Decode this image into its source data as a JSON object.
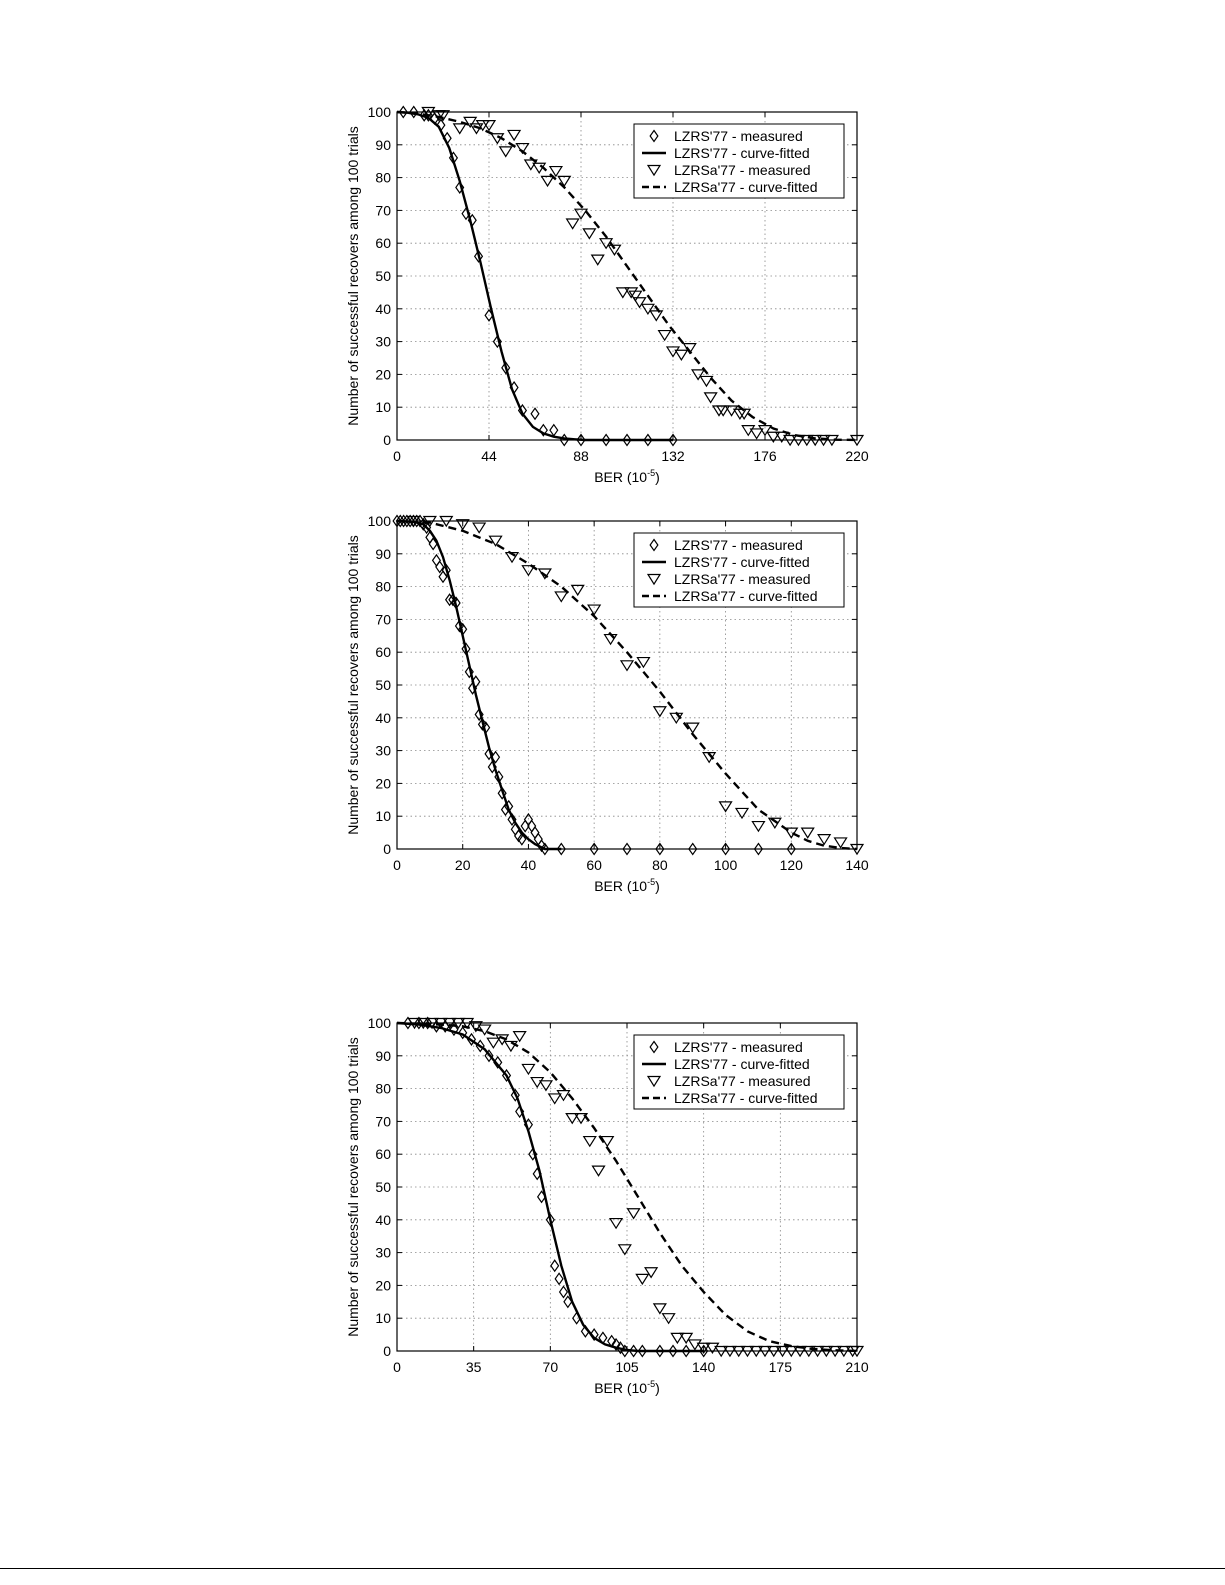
{
  "chart_data": [
    {
      "type": "line",
      "xlabel": "BER (10",
      "xlabel_exp": "-5",
      "xlabel_close": ")",
      "ylabel": "Number of successful recovers among 100 trials",
      "xlim": [
        0,
        220
      ],
      "ylim": [
        0,
        100
      ],
      "xticks": [
        0,
        44,
        88,
        132,
        176,
        220
      ],
      "yticks": [
        0,
        10,
        20,
        30,
        40,
        50,
        60,
        70,
        80,
        90,
        100
      ],
      "grid": true,
      "legend_position": "top-right",
      "series": [
        {
          "name": "LZRS'77 - measured",
          "style": "diamond",
          "x": [
            3,
            8,
            13,
            15,
            18,
            21,
            24,
            27,
            30,
            33,
            36,
            39,
            44,
            48,
            52,
            56,
            60,
            66,
            70,
            75,
            80,
            88,
            100,
            110,
            120,
            132
          ],
          "y": [
            100,
            100,
            99,
            99,
            98,
            96,
            92,
            86,
            77,
            69,
            67,
            56,
            38,
            30,
            22,
            16,
            9,
            8,
            3,
            3,
            0,
            0,
            0,
            0,
            0,
            0
          ]
        },
        {
          "name": "LZRS'77 - curve-fitted",
          "style": "solid",
          "x": [
            0,
            5,
            10,
            15,
            20,
            25,
            30,
            35,
            40,
            45,
            50,
            55,
            60,
            65,
            70,
            75,
            80,
            85,
            90,
            100,
            110,
            120,
            132
          ],
          "y": [
            100,
            99.8,
            99.3,
            98.2,
            95.5,
            89,
            79,
            67,
            54,
            40,
            27,
            15.5,
            8,
            4,
            2,
            1,
            0.5,
            0.2,
            0,
            0,
            0,
            0,
            0
          ]
        },
        {
          "name": "LZRSa'77 - measured",
          "style": "triangle",
          "x": [
            15,
            20,
            22,
            30,
            35,
            38,
            41,
            44,
            48,
            52,
            56,
            60,
            64,
            68,
            72,
            76,
            80,
            84,
            88,
            92,
            96,
            100,
            104,
            108,
            112,
            114,
            116,
            120,
            124,
            128,
            132,
            136,
            140,
            144,
            148,
            150,
            154,
            156,
            160,
            164,
            166,
            168,
            172,
            176,
            180,
            184,
            188,
            192,
            196,
            200,
            204,
            208,
            220
          ],
          "y": [
            100,
            99,
            99,
            95,
            97,
            95,
            96,
            96,
            92,
            88,
            93,
            89,
            84,
            83,
            79,
            82,
            79,
            66,
            69,
            63,
            55,
            60,
            58,
            45,
            45,
            44,
            42,
            40,
            38,
            32,
            27,
            26,
            28,
            20,
            18,
            13,
            9,
            9,
            9,
            8,
            8,
            3,
            2,
            3,
            1,
            1,
            0,
            0,
            0,
            0,
            0,
            0,
            0
          ]
        },
        {
          "name": "LZRSa'77 - curve-fitted",
          "style": "dashed",
          "x": [
            0,
            10,
            20,
            30,
            40,
            50,
            60,
            70,
            80,
            90,
            100,
            110,
            120,
            130,
            140,
            150,
            160,
            170,
            180,
            190,
            200,
            210,
            220
          ],
          "y": [
            100,
            99.5,
            98.5,
            97,
            95,
            92,
            88,
            83,
            77,
            70,
            62,
            53,
            44,
            35,
            27,
            19,
            12,
            7,
            3.5,
            1.5,
            0.5,
            0.1,
            0
          ]
        }
      ]
    },
    {
      "type": "line",
      "xlabel": "BER (10",
      "xlabel_exp": "-5",
      "xlabel_close": ")",
      "ylabel": "Number of successful recovers among 100 trials",
      "xlim": [
        0,
        140
      ],
      "ylim": [
        0,
        100
      ],
      "xticks": [
        0,
        20,
        40,
        60,
        80,
        100,
        120,
        140
      ],
      "yticks": [
        0,
        10,
        20,
        30,
        40,
        50,
        60,
        70,
        80,
        90,
        100
      ],
      "grid": true,
      "legend_position": "top-right",
      "series": [
        {
          "name": "LZRS'77 - measured",
          "style": "diamond",
          "x": [
            0,
            1,
            2,
            3,
            4,
            5,
            6,
            7,
            8,
            9,
            10,
            11,
            12,
            13,
            14,
            15,
            16,
            17,
            18,
            19,
            20,
            21,
            22,
            23,
            24,
            25,
            26,
            27,
            28,
            29,
            30,
            31,
            32,
            33,
            34,
            35,
            36,
            37,
            38,
            39,
            40,
            41,
            42,
            43,
            44,
            45,
            50,
            60,
            70,
            80,
            90,
            100,
            110,
            120
          ],
          "y": [
            100,
            100,
            100,
            100,
            100,
            100,
            100,
            100,
            99,
            98,
            95,
            93,
            88,
            86,
            83,
            85,
            76,
            76,
            75,
            68,
            67,
            61,
            54,
            49,
            51,
            41,
            38,
            37,
            29,
            25,
            28,
            22,
            17,
            12,
            13,
            9,
            6,
            4,
            3,
            7,
            9,
            7,
            5,
            3,
            1,
            0,
            0,
            0,
            0,
            0,
            0,
            0,
            0,
            0
          ]
        },
        {
          "name": "LZRS'77 - curve-fitted",
          "style": "solid",
          "x": [
            0,
            5,
            8,
            10,
            12,
            14,
            16,
            18,
            20,
            22,
            24,
            26,
            28,
            30,
            32,
            34,
            36,
            38,
            40,
            42,
            44,
            45,
            50
          ],
          "y": [
            100,
            99.8,
            99,
            97,
            94,
            89,
            82,
            74,
            65,
            56,
            47,
            39,
            31,
            24,
            18,
            12,
            8,
            5,
            3,
            1.5,
            0.5,
            0,
            0
          ]
        },
        {
          "name": "LZRSa'77 - measured",
          "style": "triangle",
          "x": [
            5,
            10,
            15,
            20,
            25,
            30,
            35,
            40,
            45,
            50,
            55,
            60,
            65,
            70,
            75,
            80,
            85,
            90,
            95,
            100,
            105,
            110,
            115,
            120,
            125,
            130,
            135,
            140
          ],
          "y": [
            100,
            100,
            100,
            99,
            98,
            94,
            89,
            85,
            84,
            77,
            79,
            73,
            64,
            56,
            57,
            42,
            40,
            37,
            28,
            13,
            11,
            7,
            8,
            5,
            5,
            3,
            2,
            0
          ]
        },
        {
          "name": "LZRSa'77 - curve-fitted",
          "style": "dashed",
          "x": [
            0,
            10,
            20,
            30,
            40,
            50,
            60,
            70,
            80,
            90,
            100,
            110,
            120,
            125,
            130,
            135,
            140
          ],
          "y": [
            100,
            99.5,
            97,
            93,
            87,
            80,
            71,
            60,
            48,
            35,
            23,
            12,
            5,
            2.5,
            1,
            0.3,
            0
          ]
        }
      ]
    },
    {
      "type": "line",
      "xlabel": "BER (10",
      "xlabel_exp": "-5",
      "xlabel_close": ")",
      "ylabel": "Number of successful recovers among 100 trials",
      "xlim": [
        0,
        210
      ],
      "ylim": [
        0,
        100
      ],
      "xticks": [
        0,
        35,
        70,
        105,
        140,
        175,
        210
      ],
      "yticks": [
        0,
        10,
        20,
        30,
        40,
        50,
        60,
        70,
        80,
        90,
        100
      ],
      "grid": true,
      "legend_position": "top-right",
      "series": [
        {
          "name": "LZRS'77 - measured",
          "style": "diamond",
          "x": [
            5,
            10,
            14,
            18,
            22,
            26,
            30,
            34,
            38,
            42,
            46,
            50,
            54,
            56,
            60,
            62,
            64,
            66,
            70,
            72,
            74,
            76,
            78,
            82,
            86,
            90,
            94,
            98,
            100,
            102,
            104,
            108,
            112,
            120,
            126,
            132,
            140
          ],
          "y": [
            100,
            100,
            100,
            99,
            99,
            98,
            97,
            95,
            93,
            90,
            88,
            84,
            78,
            73,
            69,
            60,
            54,
            47,
            40,
            26,
            22,
            18,
            15,
            10,
            6,
            5,
            4,
            3,
            2,
            1,
            0,
            0,
            0,
            0,
            0,
            0,
            0
          ]
        },
        {
          "name": "LZRS'77 - curve-fitted",
          "style": "solid",
          "x": [
            0,
            10,
            20,
            30,
            40,
            50,
            55,
            60,
            65,
            70,
            75,
            80,
            85,
            90,
            95,
            100,
            105,
            110,
            120,
            140
          ],
          "y": [
            100,
            99.5,
            98.5,
            96.5,
            92,
            84,
            77,
            67,
            55,
            40,
            26,
            15,
            8,
            4,
            2,
            1,
            0.3,
            0,
            0,
            0
          ]
        },
        {
          "name": "LZRSa'77 - measured",
          "style": "triangle",
          "x": [
            8,
            12,
            16,
            20,
            24,
            28,
            32,
            36,
            40,
            44,
            48,
            52,
            56,
            60,
            64,
            68,
            72,
            76,
            80,
            84,
            88,
            92,
            96,
            100,
            104,
            108,
            112,
            116,
            120,
            124,
            128,
            132,
            136,
            140,
            144,
            148,
            152,
            156,
            160,
            164,
            168,
            172,
            176,
            180,
            184,
            188,
            192,
            196,
            200,
            204,
            208,
            210
          ],
          "y": [
            100,
            100,
            100,
            100,
            100,
            100,
            100,
            99,
            98,
            94,
            95,
            93,
            96,
            86,
            82,
            81,
            77,
            78,
            71,
            71,
            64,
            55,
            64,
            39,
            31,
            42,
            22,
            24,
            13,
            10,
            4,
            4,
            2,
            1,
            1,
            0,
            0,
            0,
            0,
            0,
            0,
            0,
            0,
            0,
            0,
            0,
            0,
            0,
            0,
            0,
            0,
            0
          ]
        },
        {
          "name": "LZRSa'77 - curve-fitted",
          "style": "dashed",
          "x": [
            0,
            10,
            20,
            30,
            40,
            50,
            60,
            70,
            80,
            90,
            100,
            110,
            120,
            130,
            140,
            150,
            160,
            170,
            180,
            190,
            200,
            210
          ],
          "y": [
            100,
            99.8,
            99.5,
            99,
            97.5,
            95,
            91,
            85,
            77,
            68,
            58,
            47,
            36,
            26,
            18,
            11,
            6,
            3,
            1.5,
            0.6,
            0.2,
            0
          ]
        }
      ]
    }
  ]
}
